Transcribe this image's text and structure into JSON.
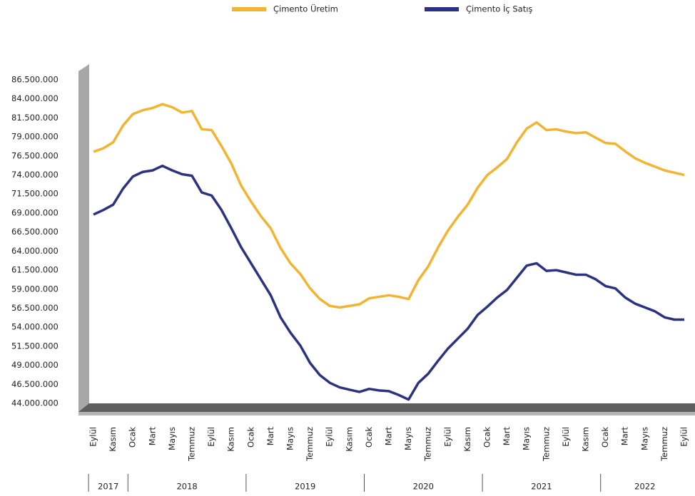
{
  "chart_data": {
    "type": "line",
    "categories": [
      "Eylül",
      null,
      "Kasım",
      null,
      "Ocak",
      null,
      "Mart",
      null,
      "Mayıs",
      null,
      "Temmuz",
      null,
      "Eylül",
      null,
      "Kasım",
      null,
      "Ocak",
      null,
      "Mart",
      null,
      "Mayıs",
      null,
      "Temmuz",
      null,
      "Eylül",
      null,
      "Kasım",
      null,
      "Ocak",
      null,
      "Mart",
      null,
      "Mayıs",
      null,
      "Temmuz",
      null,
      "Eylül",
      null,
      "Kasım",
      null,
      "Ocak",
      null,
      "Mart",
      null,
      "Mayıs",
      null,
      "Temmuz",
      null,
      "Eylül",
      null,
      "Kasım",
      null,
      "Ocak",
      null,
      "Mart",
      null,
      "Mayıs",
      null,
      "Temmuz",
      null,
      "Eylül"
    ],
    "years": [
      "2017",
      "2018",
      "2019",
      "2020",
      "2021",
      "2022"
    ],
    "series": [
      {
        "name": "Çimento Üretim",
        "color": "#f2b433",
        "values": [
          77050000,
          77500000,
          78300000,
          80500000,
          82000000,
          82500000,
          82800000,
          83300000,
          82900000,
          82200000,
          82400000,
          80000000,
          79900000,
          77800000,
          75500000,
          72600000,
          70500000,
          68600000,
          67000000,
          64400000,
          62400000,
          61000000,
          59100000,
          57700000,
          56800000,
          56600000,
          56800000,
          57000000,
          57800000,
          58000000,
          58200000,
          58000000,
          57700000,
          60200000,
          62000000,
          64500000,
          66700000,
          68500000,
          70100000,
          72300000,
          74000000,
          75000000,
          76100000,
          78300000,
          80100000,
          80900000,
          79900000,
          80000000,
          79700000,
          79500000,
          79600000,
          78900000,
          78200000,
          78100000,
          77100000,
          76200000,
          75600000,
          75100000,
          74600000,
          74300000,
          74000000
        ]
      },
      {
        "name": "Çimento İç Satış",
        "color": "#2b3381",
        "values": [
          68800000,
          69400000,
          70100000,
          72200000,
          73800000,
          74400000,
          74600000,
          75200000,
          74600000,
          74100000,
          73900000,
          71700000,
          71300000,
          69400000,
          67000000,
          64500000,
          62400000,
          60300000,
          58200000,
          55300000,
          53300000,
          51600000,
          49300000,
          47700000,
          46700000,
          46100000,
          45800000,
          45500000,
          45900000,
          45700000,
          45600000,
          45100000,
          44500000,
          46700000,
          47900000,
          49600000,
          51200000,
          52500000,
          53800000,
          55600000,
          56700000,
          57900000,
          58900000,
          60500000,
          62100000,
          62400000,
          61400000,
          61500000,
          61200000,
          60900000,
          60900000,
          60300000,
          59400000,
          59100000,
          57900000,
          57100000,
          56600000,
          56100000,
          55300000,
          55000000,
          55000000
        ]
      }
    ],
    "ylim": [
      44000000,
      86500000
    ],
    "yticks": [
      {
        "value": 44000000,
        "label": "44.000.000"
      },
      {
        "value": 46500000,
        "label": "46.500.000"
      },
      {
        "value": 49000000,
        "label": "49.000.000"
      },
      {
        "value": 51500000,
        "label": "51.500.000"
      },
      {
        "value": 54000000,
        "label": "54.000.000"
      },
      {
        "value": 56500000,
        "label": "56.500.000"
      },
      {
        "value": 59000000,
        "label": "59.000.000"
      },
      {
        "value": 61500000,
        "label": "61.500.000"
      },
      {
        "value": 64000000,
        "label": "64.000.000"
      },
      {
        "value": 66500000,
        "label": "66.500.000"
      },
      {
        "value": 69000000,
        "label": "69.000.000"
      },
      {
        "value": 71500000,
        "label": "71.500.000"
      },
      {
        "value": 74000000,
        "label": "74.000.000"
      },
      {
        "value": 76500000,
        "label": "76.500.000"
      },
      {
        "value": 79000000,
        "label": "79.000.000"
      },
      {
        "value": 81500000,
        "label": "81.500.000"
      },
      {
        "value": 84000000,
        "label": "84.000.000"
      },
      {
        "value": 86500000,
        "label": "86.500.000"
      }
    ],
    "grid": false
  }
}
